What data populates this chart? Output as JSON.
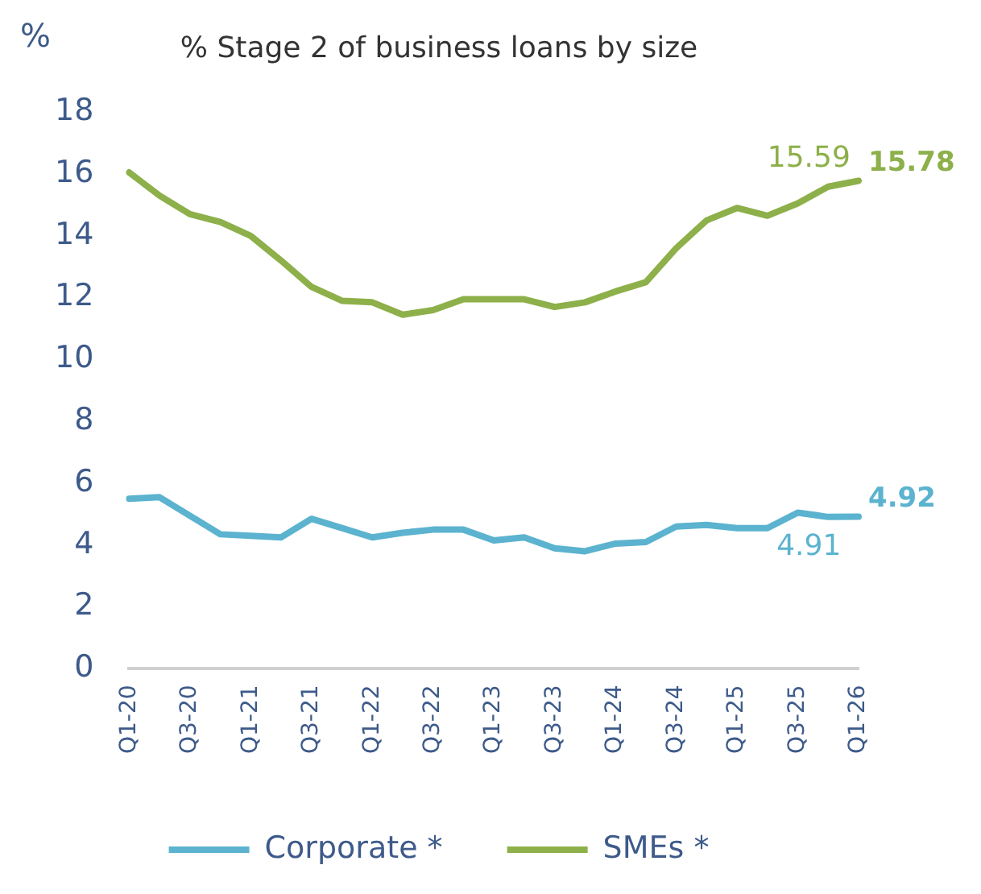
{
  "chart_data": {
    "type": "line",
    "title": "% Stage 2 of business loans by size",
    "ylabel": "%",
    "categories": [
      "Q1-20",
      null,
      "Q3-20",
      null,
      "Q1-21",
      null,
      "Q3-21",
      null,
      "Q1-22",
      null,
      "Q3-22",
      null,
      "Q1-23",
      null,
      "Q3-23",
      null,
      "Q1-24",
      null,
      "Q3-24",
      null,
      "Q1-25",
      null,
      "Q3-25",
      null,
      "Q1-26"
    ],
    "series": [
      {
        "name": "Corporate *",
        "color": "#5bb3cf",
        "values": [
          5.5,
          5.55,
          4.95,
          4.35,
          4.3,
          4.25,
          4.85,
          4.55,
          4.25,
          4.4,
          4.5,
          4.5,
          4.15,
          4.25,
          3.9,
          3.8,
          4.05,
          4.1,
          4.6,
          4.65,
          4.55,
          4.55,
          5.05,
          4.91,
          4.92
        ],
        "value_labels": [
          null,
          null,
          null,
          null,
          null,
          null,
          null,
          null,
          null,
          null,
          null,
          null,
          null,
          null,
          null,
          null,
          null,
          null,
          null,
          null,
          null,
          null,
          null,
          "4.91",
          "4.92"
        ]
      },
      {
        "name": "SMEs *",
        "color": "#8db04a",
        "values": [
          16.05,
          15.3,
          14.7,
          14.45,
          14.0,
          13.2,
          12.35,
          11.9,
          11.85,
          11.45,
          11.6,
          11.95,
          11.95,
          11.95,
          11.7,
          11.85,
          12.2,
          12.5,
          13.6,
          14.5,
          14.9,
          14.65,
          15.05,
          15.59,
          15.78
        ],
        "value_labels": [
          null,
          null,
          null,
          null,
          null,
          null,
          null,
          null,
          null,
          null,
          null,
          null,
          null,
          null,
          null,
          null,
          null,
          null,
          null,
          null,
          null,
          null,
          null,
          "15.59",
          "15.78"
        ]
      }
    ],
    "ylim": [
      0,
      18
    ],
    "yticks": [
      0,
      2,
      4,
      6,
      8,
      10,
      12,
      14,
      16,
      18
    ],
    "grid": false,
    "legend": "bottom",
    "marker": "none",
    "line_style": "solid"
  }
}
